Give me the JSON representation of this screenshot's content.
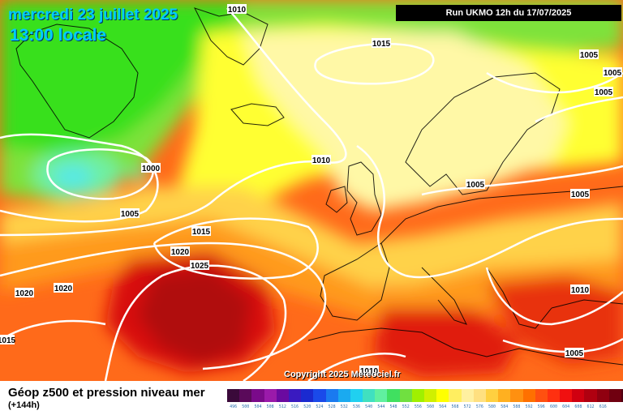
{
  "header": {
    "date": "mercredi 23 juillet 2025",
    "time": "13:00 locale",
    "run": "Run UKMO 12h du 17/07/2025"
  },
  "copyright": "Copyright 2025 Meteociel.fr",
  "footer": {
    "title": "Géop z500 et pression niveau mer",
    "subtitle": "(+144h)"
  },
  "isobar_labels": [
    {
      "text": "1010",
      "id": "isobar-1010-greenland"
    },
    {
      "text": "1015",
      "id": "isobar-1015-north-atlantic"
    },
    {
      "text": "1005",
      "id": "isobar-1005-norway-north"
    },
    {
      "text": "1005",
      "id": "isobar-1005-norway-east"
    },
    {
      "text": "1005",
      "id": "isobar-1005-finland"
    },
    {
      "text": "1000",
      "id": "isobar-1000-low-center"
    },
    {
      "text": "1005",
      "id": "isobar-1005-low"
    },
    {
      "text": "1010",
      "id": "isobar-1010-ireland"
    },
    {
      "text": "1005",
      "id": "isobar-1005-baltic"
    },
    {
      "text": "1005",
      "id": "isobar-1005-russia"
    },
    {
      "text": "1015",
      "id": "isobar-1015-atlantic"
    },
    {
      "text": "1020",
      "id": "isobar-1020-atlantic"
    },
    {
      "text": "1025",
      "id": "isobar-1025-azores"
    },
    {
      "text": "1020",
      "id": "isobar-1020-west"
    },
    {
      "text": "1020",
      "id": "isobar-1020-far-west"
    },
    {
      "text": "1015",
      "id": "isobar-1015-edge"
    },
    {
      "text": "1010",
      "id": "isobar-1010-balkans"
    },
    {
      "text": "1005",
      "id": "isobar-1005-turkey"
    },
    {
      "text": "1010",
      "id": "isobar-1010-africa"
    }
  ],
  "legend": {
    "colors": [
      "#3a0a3a",
      "#5a0a5a",
      "#7a0a8a",
      "#9a1aaa",
      "#6a0aa0",
      "#3a1ac0",
      "#1a2ad0",
      "#1a4aea",
      "#1a7af0",
      "#1aaaf0",
      "#20d0f0",
      "#40e0c0",
      "#60f0a0",
      "#40e060",
      "#70e040",
      "#a0f000",
      "#d0f000",
      "#ffff00",
      "#ffee60",
      "#fff0a0",
      "#ffe080",
      "#ffd040",
      "#ffb020",
      "#ff9010",
      "#ff7000",
      "#ff5010",
      "#ff3010",
      "#f01010",
      "#d00010",
      "#b00010",
      "#900010",
      "#700010",
      "#500010"
    ],
    "labels": [
      "496",
      "500",
      "504",
      "508",
      "512",
      "516",
      "520",
      "524",
      "528",
      "532",
      "536",
      "540",
      "544",
      "548",
      "552",
      "556",
      "560",
      "564",
      "568",
      "572",
      "576",
      "580",
      "584",
      "588",
      "592",
      "596",
      "600",
      "604",
      "608",
      "612",
      "616",
      "",
      ""
    ]
  }
}
